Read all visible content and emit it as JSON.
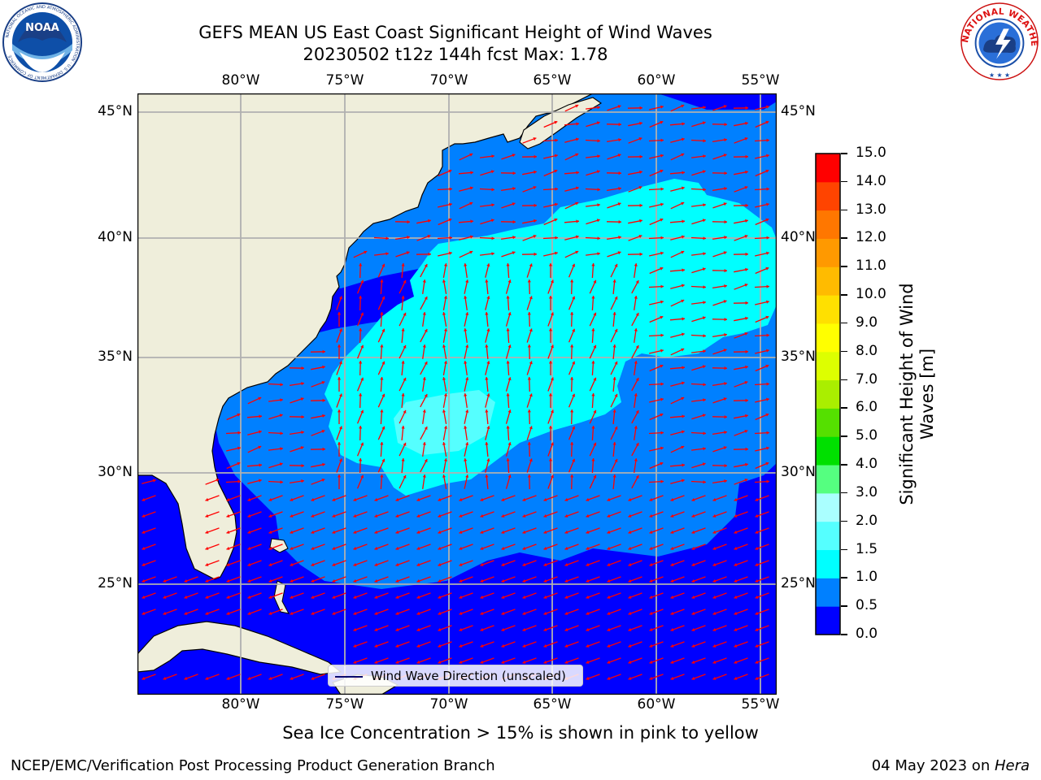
{
  "header": {
    "title_line1": "GEFS MEAN US East Coast Significant Height of Wind Waves",
    "title_line2": "20230502 t12z 144h fcst   Max: 1.78"
  },
  "logos": {
    "left": {
      "text": "NOAA",
      "ring_text": "NATIONAL OCEANIC AND ATMOSPHERIC ADMINISTRATION · U.S. DEPARTMENT OF COMMERCE"
    },
    "right": {
      "ring_text": "NATIONAL WEATHER SERVICE"
    }
  },
  "map": {
    "lon_labels": [
      "80°W",
      "75°W",
      "70°W",
      "65°W",
      "60°W",
      "55°W"
    ],
    "lat_labels": [
      "45°N",
      "40°N",
      "35°N",
      "30°N",
      "25°N"
    ],
    "colors": {
      "land": "#efeedb",
      "grid": "#b0b0b0",
      "arrow": "#ff0000",
      "coast": "#000000"
    },
    "legend_label": "Wind Wave Direction (unscaled)"
  },
  "colorbar": {
    "label": "Significant Height of Wind Waves [m]",
    "ticks": [
      "0.0",
      "0.5",
      "1.0",
      "1.5",
      "2.0",
      "3.0",
      "4.0",
      "5.0",
      "6.0",
      "7.0",
      "8.0",
      "9.0",
      "10.0",
      "11.0",
      "12.0",
      "13.0",
      "14.0",
      "15.0"
    ],
    "colors": [
      "#0000ff",
      "#0080ff",
      "#00ffff",
      "#55ffff",
      "#aaffff",
      "#55ff80",
      "#00e000",
      "#55e000",
      "#aaee00",
      "#ddff00",
      "#ffff00",
      "#ffe000",
      "#ffbb00",
      "#ff9900",
      "#ff7700",
      "#ff4400",
      "#ff0000"
    ]
  },
  "footer": {
    "sea_ice_note": "Sea Ice Concentration > 15% is shown in pink to yellow",
    "branch": "NCEP/EMC/Verification Post Processing Product Generation Branch",
    "date_prefix": "04 May 2023 on ",
    "machine": "Hera"
  }
}
